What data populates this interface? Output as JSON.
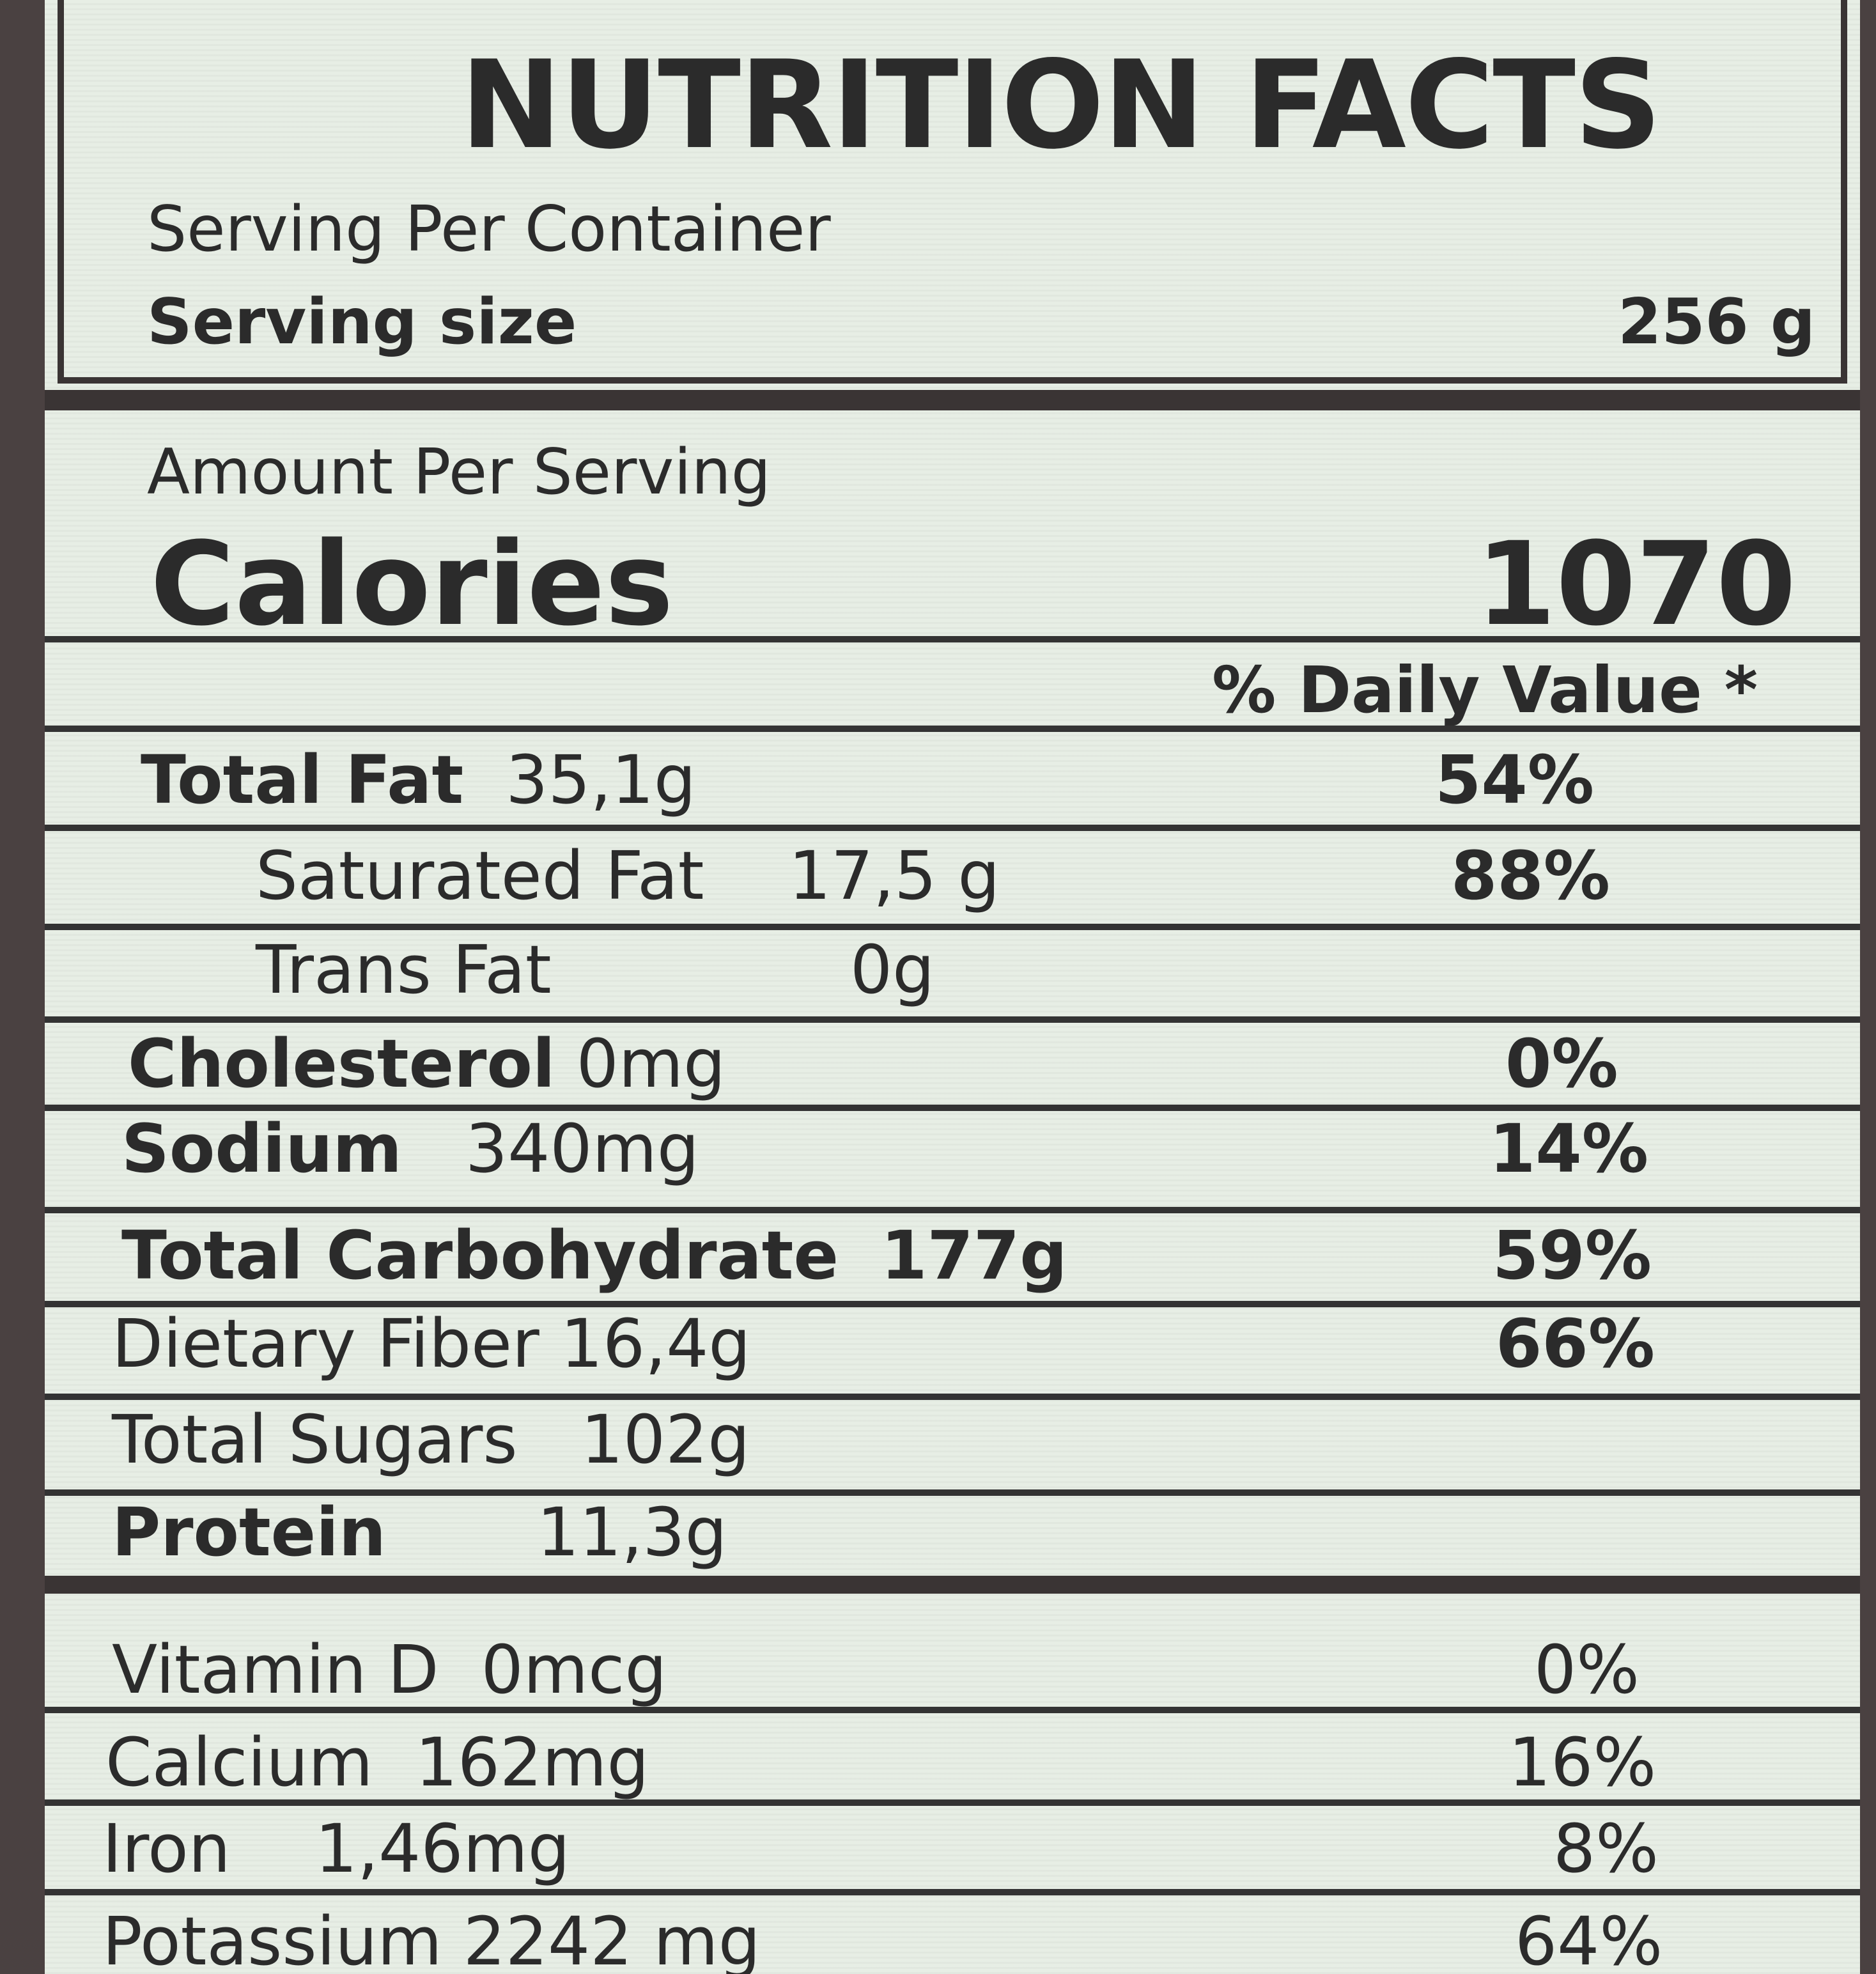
{
  "label": {
    "title": "NUTRITION FACTS",
    "serving_per_container": "Serving  Per Container",
    "serving_size_label": "Serving size",
    "serving_size_value": "256 g",
    "amount_per_serving": "Amount Per Serving",
    "calories_label": "Calories",
    "calories_value": "1070",
    "daily_value_header": "% Daily Value *"
  },
  "nutrients": [
    {
      "name": "Total Fat",
      "amount": "35,1g",
      "dv": "54%"
    },
    {
      "name": "Saturated Fat",
      "amount": "17,5 g",
      "dv": "88%"
    },
    {
      "name": "Trans Fat",
      "amount": "0g",
      "dv": ""
    },
    {
      "name": "Cholesterol",
      "amount": "0mg",
      "dv": "0%"
    },
    {
      "name": "Sodium",
      "amount": "340mg",
      "dv": "14%"
    },
    {
      "name": "Total Carbohydrate",
      "amount": "177g",
      "dv": "59%"
    },
    {
      "name": "Dietary Fiber",
      "amount": "16,4g",
      "dv": "66%"
    },
    {
      "name": "Total Sugars",
      "amount": "102g",
      "dv": ""
    },
    {
      "name": "Protein",
      "amount": "11,3g",
      "dv": ""
    }
  ],
  "vitamins": [
    {
      "name": "Vitamin D",
      "amount": "0mcg",
      "dv": "0%"
    },
    {
      "name": "Calcium",
      "amount": "162mg",
      "dv": "16%"
    },
    {
      "name": "Iron",
      "amount": "1,46mg",
      "dv": "8%"
    },
    {
      "name": "Potassium",
      "amount": "2242 mg",
      "dv": "64%"
    }
  ]
}
